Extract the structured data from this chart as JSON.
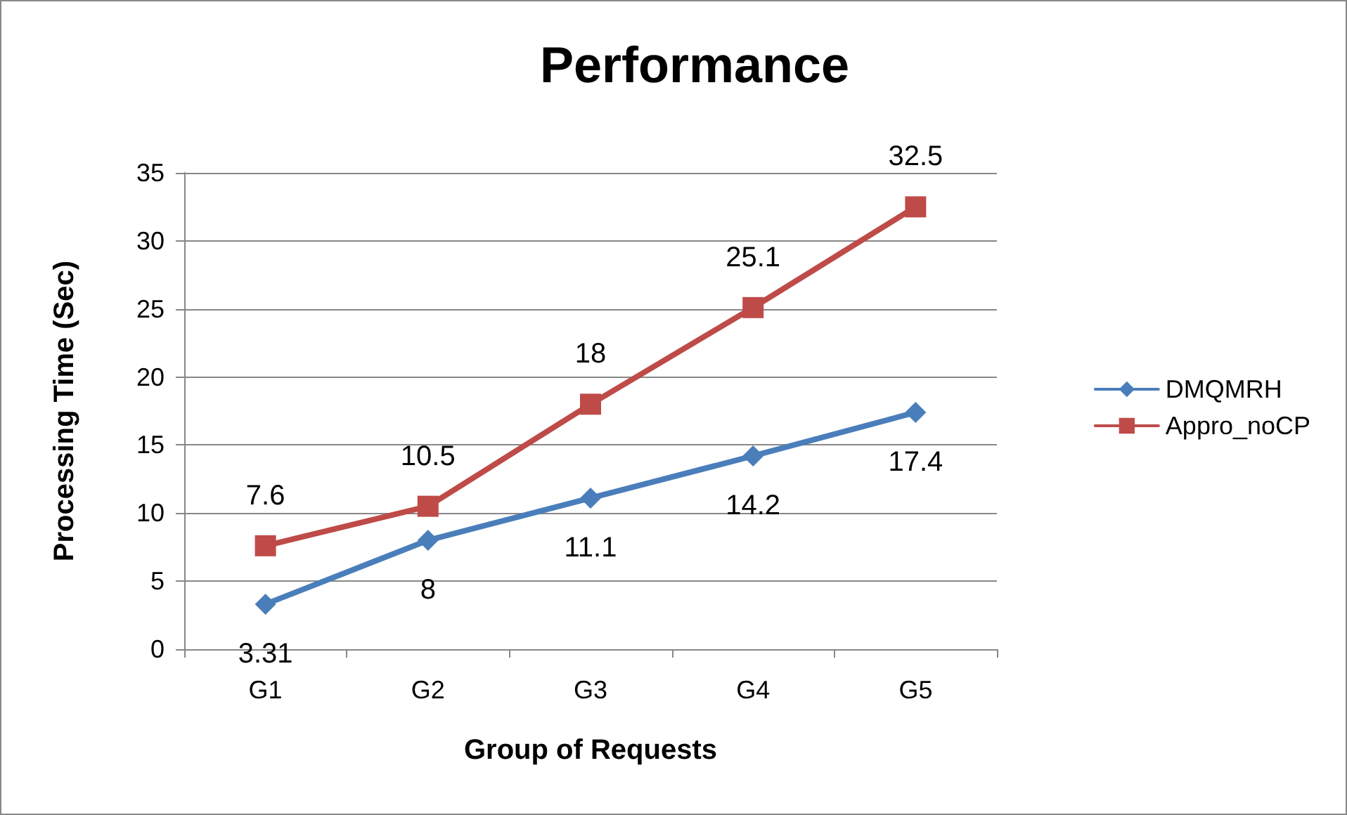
{
  "chart_data": {
    "type": "line",
    "title": "Performance",
    "xlabel": "Group of Requests",
    "ylabel": "Processing Time (Sec)",
    "categories": [
      "G1",
      "G2",
      "G3",
      "G4",
      "G5"
    ],
    "series": [
      {
        "name": "DMQMRH",
        "color": "#4a7ebb",
        "marker": "diamond",
        "values": [
          3.31,
          8,
          11.1,
          14.2,
          17.4
        ]
      },
      {
        "name": "Appro_noCP",
        "color": "#be4b48",
        "marker": "square",
        "values": [
          7.6,
          10.5,
          18,
          25.1,
          32.5
        ]
      }
    ],
    "ylim": [
      0,
      35
    ],
    "yticks": [
      0,
      5,
      10,
      15,
      20,
      25,
      30,
      35
    ],
    "grid": "y",
    "legend": "right",
    "data_labels": true,
    "line_style": "solid"
  }
}
